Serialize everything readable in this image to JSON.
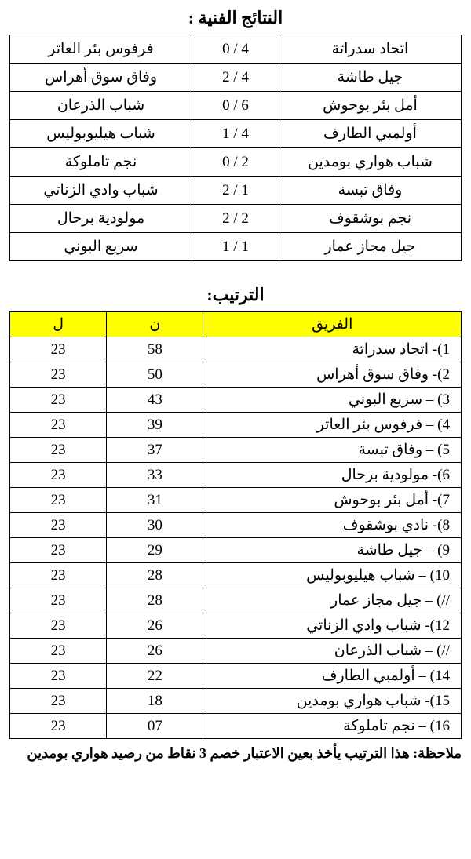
{
  "results_title": "النتائج الفنية :",
  "standings_title": "الترتيب:",
  "results": [
    {
      "home": "اتحاد سدراتة",
      "score": "0 / 4",
      "away": "فرفوس بئر العاتر"
    },
    {
      "home": "جيل طاشة",
      "score": "2 / 4",
      "away": "وفاق سوق أهراس"
    },
    {
      "home": "أمل بئر بوحوش",
      "score": "0 / 6",
      "away": "شباب الذرعان"
    },
    {
      "home": "أولمبي الطارف",
      "score": "1 / 4",
      "away": "شباب هيليوبوليس"
    },
    {
      "home": "شباب هواري بومدين",
      "score": "0 / 2",
      "away": "نجم تاملوكة"
    },
    {
      "home": "وفاق تبسة",
      "score": "2 / 1",
      "away": "شباب وادي الزناتي"
    },
    {
      "home": "نجم بوشقوف",
      "score": "2 / 2",
      "away": "مولودية برحال"
    },
    {
      "home": "جيل مجاز عمار",
      "score": "1 / 1",
      "away": "سريع البوني"
    }
  ],
  "standings_headers": {
    "team": "الفريق",
    "pts": "ن",
    "played": "ل"
  },
  "standings": [
    {
      "team": "1)- اتحاد سدراتة",
      "pts": "58",
      "played": "23"
    },
    {
      "team": "2)- وفاق سوق أهراس",
      "pts": "50",
      "played": "23"
    },
    {
      "team": "3) – سريع البوني",
      "pts": "43",
      "played": "23"
    },
    {
      "team": "4) – فرفوس بئر العاتر",
      "pts": "39",
      "played": "23"
    },
    {
      "team": "5) – وفاق تبسة",
      "pts": "37",
      "played": "23"
    },
    {
      "team": "6)- مولودية برحال",
      "pts": "33",
      "played": "23"
    },
    {
      "team": "7)- أمل بئر بوحوش",
      "pts": "31",
      "played": "23"
    },
    {
      "team": "8)- نادي بوشقوف",
      "pts": "30",
      "played": "23"
    },
    {
      "team": "9) – جيل طاشة",
      "pts": "29",
      "played": "23"
    },
    {
      "team": "10) – شباب هيليوبوليس",
      "pts": "28",
      "played": "23"
    },
    {
      "team": "//) – جيل مجاز عمار",
      "pts": "28",
      "played": "23"
    },
    {
      "team": "12)- شباب وادي الزناتي",
      "pts": "26",
      "played": "23"
    },
    {
      "team": "//) – شباب الذرعان",
      "pts": "26",
      "played": "23"
    },
    {
      "team": "14) – أولمبي الطارف",
      "pts": "22",
      "played": "23"
    },
    {
      "team": "15)- شباب هواري بومدين",
      "pts": "18",
      "played": "23"
    },
    {
      "team": "16) – نجم تاملوكة",
      "pts": "07",
      "played": "23"
    }
  ],
  "note": "ملاحظة: هذا الترتيب يأخذ بعين الاعتبار خصم 3 نقاط من رصيد هواري بومدين",
  "colors": {
    "header_bg": "#ffff00",
    "border": "#000000",
    "bg": "#ffffff",
    "text": "#000000"
  }
}
